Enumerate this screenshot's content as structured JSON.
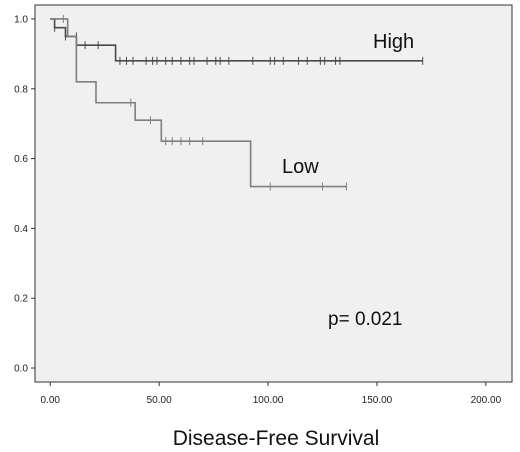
{
  "chart_data": {
    "type": "line",
    "title": "",
    "xlabel": "Disease-Free Survival",
    "ylabel": "",
    "xlim": [
      -7,
      212
    ],
    "ylim": [
      -0.04,
      1.04
    ],
    "x_ticks": [
      0,
      50,
      100,
      150,
      200
    ],
    "x_tick_labels": [
      "0.00",
      "50.00",
      "100.00",
      "150.00",
      "200.00"
    ],
    "y_ticks": [
      0.0,
      0.2,
      0.4,
      0.6,
      0.8,
      1.0
    ],
    "y_tick_labels": [
      "0.0",
      "0.2",
      "0.4",
      "0.6",
      "0.8",
      "1.0"
    ],
    "background_color": "#f0f0f0",
    "annotation": "p= 0.021",
    "series": [
      {
        "name": "High",
        "color": "#4a4a4a",
        "steps": [
          [
            0,
            1.0
          ],
          [
            2,
            0.975
          ],
          [
            7,
            0.95
          ],
          [
            12,
            0.925
          ],
          [
            30,
            0.88
          ],
          [
            171,
            0.88
          ]
        ],
        "censored": [
          [
            2,
            0.975
          ],
          [
            7,
            0.95
          ],
          [
            12,
            0.95
          ],
          [
            16,
            0.925
          ],
          [
            22,
            0.925
          ],
          [
            32,
            0.88
          ],
          [
            35,
            0.88
          ],
          [
            38,
            0.88
          ],
          [
            44,
            0.88
          ],
          [
            47,
            0.88
          ],
          [
            49,
            0.88
          ],
          [
            53,
            0.88
          ],
          [
            56,
            0.88
          ],
          [
            60,
            0.88
          ],
          [
            64,
            0.88
          ],
          [
            66,
            0.88
          ],
          [
            72,
            0.88
          ],
          [
            76,
            0.88
          ],
          [
            78,
            0.88
          ],
          [
            82,
            0.88
          ],
          [
            93,
            0.88
          ],
          [
            101,
            0.88
          ],
          [
            103,
            0.88
          ],
          [
            107,
            0.88
          ],
          [
            114,
            0.88
          ],
          [
            118,
            0.88
          ],
          [
            124,
            0.88
          ],
          [
            126,
            0.88
          ],
          [
            131,
            0.88
          ],
          [
            133,
            0.88
          ],
          [
            171,
            0.88
          ]
        ]
      },
      {
        "name": "Low",
        "color": "#7f7f7f",
        "steps": [
          [
            0,
            1.0
          ],
          [
            8,
            0.95
          ],
          [
            12,
            0.82
          ],
          [
            21,
            0.76
          ],
          [
            39,
            0.71
          ],
          [
            51,
            0.65
          ],
          [
            92,
            0.52
          ],
          [
            136,
            0.52
          ]
        ],
        "censored": [
          [
            6,
            1.0
          ],
          [
            37,
            0.76
          ],
          [
            46,
            0.71
          ],
          [
            53,
            0.65
          ],
          [
            56,
            0.65
          ],
          [
            60,
            0.65
          ],
          [
            64,
            0.65
          ],
          [
            70,
            0.65
          ],
          [
            101,
            0.52
          ],
          [
            125,
            0.52
          ],
          [
            136,
            0.52
          ]
        ]
      }
    ]
  }
}
